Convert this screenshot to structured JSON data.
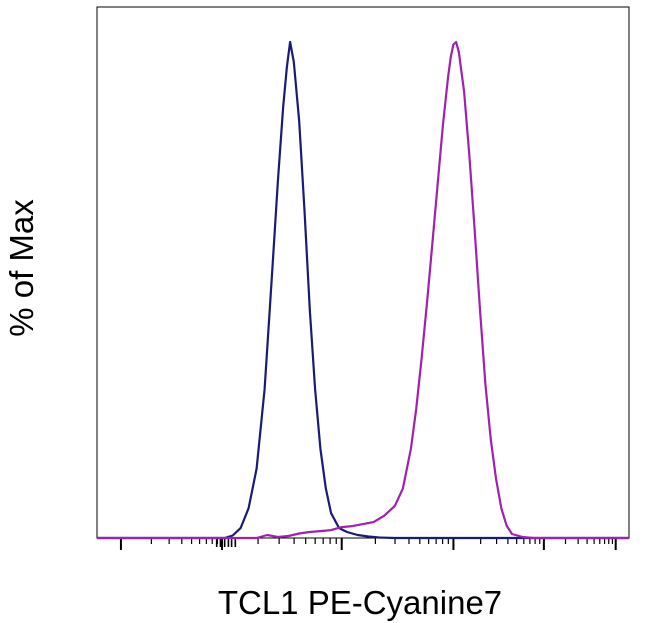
{
  "chart_data": {
    "type": "line",
    "chart_kind": "flow cytometry histogram overlay",
    "xlabel": "TCL1 PE-Cyanine7",
    "ylabel": "% of Max",
    "x_scale": "biexponential (log-like)",
    "x_tick_labels": "none",
    "y_tick_labels": "none",
    "grid": false,
    "legend": "none",
    "ylim": [
      0,
      100
    ],
    "series": [
      {
        "color": "#1a1a7a",
        "points": [
          [
            0.0,
            0
          ],
          [
            0.24,
            0
          ],
          [
            0.255,
            0.5
          ],
          [
            0.27,
            2
          ],
          [
            0.285,
            6
          ],
          [
            0.3,
            14
          ],
          [
            0.315,
            30
          ],
          [
            0.33,
            55
          ],
          [
            0.34,
            72
          ],
          [
            0.35,
            87
          ],
          [
            0.357,
            95
          ],
          [
            0.363,
            100
          ],
          [
            0.37,
            96
          ],
          [
            0.38,
            84
          ],
          [
            0.39,
            66
          ],
          [
            0.4,
            46
          ],
          [
            0.41,
            30
          ],
          [
            0.42,
            18
          ],
          [
            0.43,
            10
          ],
          [
            0.44,
            5
          ],
          [
            0.455,
            2
          ],
          [
            0.47,
            1.2
          ],
          [
            0.49,
            0.6
          ],
          [
            0.51,
            0.3
          ],
          [
            0.53,
            0.1
          ],
          [
            0.56,
            0
          ],
          [
            1.0,
            0
          ]
        ]
      },
      {
        "color": "#a020b0",
        "points": [
          [
            0.0,
            0
          ],
          [
            0.3,
            0
          ],
          [
            0.32,
            0.6
          ],
          [
            0.34,
            0.2
          ],
          [
            0.36,
            0.4
          ],
          [
            0.38,
            0.9
          ],
          [
            0.4,
            1.2
          ],
          [
            0.42,
            1.4
          ],
          [
            0.44,
            1.6
          ],
          [
            0.46,
            2.2
          ],
          [
            0.48,
            2.4
          ],
          [
            0.5,
            2.8
          ],
          [
            0.52,
            3.2
          ],
          [
            0.54,
            4.5
          ],
          [
            0.56,
            6.5
          ],
          [
            0.575,
            10
          ],
          [
            0.59,
            18
          ],
          [
            0.6,
            26
          ],
          [
            0.61,
            36
          ],
          [
            0.62,
            47
          ],
          [
            0.63,
            59
          ],
          [
            0.64,
            71
          ],
          [
            0.65,
            83
          ],
          [
            0.66,
            93
          ],
          [
            0.665,
            97
          ],
          [
            0.67,
            99.5
          ],
          [
            0.675,
            100
          ],
          [
            0.68,
            98
          ],
          [
            0.69,
            90
          ],
          [
            0.7,
            77
          ],
          [
            0.71,
            62
          ],
          [
            0.72,
            46
          ],
          [
            0.73,
            31
          ],
          [
            0.74,
            20
          ],
          [
            0.75,
            12
          ],
          [
            0.76,
            6
          ],
          [
            0.77,
            2.5
          ],
          [
            0.78,
            0.8
          ],
          [
            0.8,
            0.2
          ],
          [
            0.82,
            0
          ],
          [
            1.0,
            0
          ]
        ]
      }
    ],
    "colors": {
      "frame": "#000000",
      "background": "#ffffff"
    }
  }
}
